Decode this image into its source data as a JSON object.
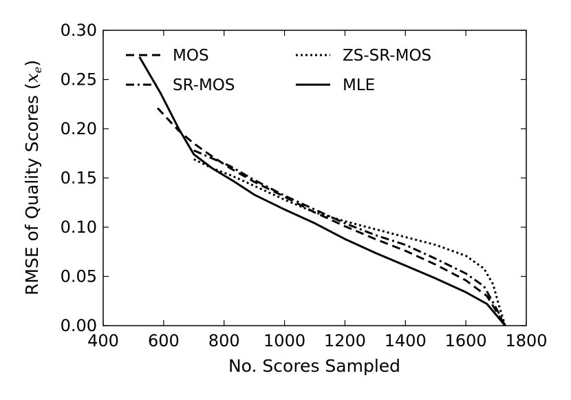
{
  "chart_data": {
    "type": "line",
    "title": "",
    "xlabel": "No. Scores Sampled",
    "ylabel_text": "RMSE of Quality Scores",
    "ylabel_math": "x",
    "ylabel_math_sub": "e",
    "xlim": [
      400,
      1800
    ],
    "ylim": [
      0.0,
      0.3
    ],
    "xticks": [
      "400",
      "600",
      "800",
      "1000",
      "1200",
      "1400",
      "1600",
      "1800"
    ],
    "yticks": [
      "0.00",
      "0.05",
      "0.10",
      "0.15",
      "0.20",
      "0.25",
      "0.30"
    ],
    "grid": false,
    "legend_position": "top-left",
    "series": [
      {
        "name": "MOS",
        "style": "dashed",
        "x": [
          580,
          650,
          700,
          760,
          820,
          900,
          1000,
          1100,
          1200,
          1300,
          1400,
          1500,
          1600,
          1670,
          1700,
          1730
        ],
        "y": [
          0.221,
          0.198,
          0.185,
          0.172,
          0.16,
          0.146,
          0.131,
          0.115,
          0.101,
          0.088,
          0.076,
          0.062,
          0.046,
          0.03,
          0.015,
          0.0
        ]
      },
      {
        "name": "SR-MOS",
        "style": "dashdot",
        "x": [
          700,
          760,
          820,
          900,
          1000,
          1100,
          1200,
          1300,
          1400,
          1500,
          1600,
          1660,
          1700,
          1730
        ],
        "y": [
          0.178,
          0.17,
          0.162,
          0.148,
          0.132,
          0.118,
          0.104,
          0.092,
          0.082,
          0.068,
          0.053,
          0.04,
          0.018,
          0.0
        ]
      },
      {
        "name": "ZS-SR-MOS",
        "style": "dotted",
        "x": [
          700,
          760,
          820,
          900,
          1000,
          1100,
          1200,
          1300,
          1400,
          1500,
          1600,
          1660,
          1690,
          1710,
          1730
        ],
        "y": [
          0.169,
          0.16,
          0.153,
          0.142,
          0.128,
          0.115,
          0.106,
          0.098,
          0.09,
          0.082,
          0.071,
          0.058,
          0.042,
          0.02,
          0.0
        ]
      },
      {
        "name": "MLE",
        "style": "solid",
        "x": [
          520,
          590,
          650,
          700,
          760,
          830,
          900,
          1000,
          1100,
          1200,
          1300,
          1400,
          1500,
          1600,
          1670,
          1730
        ],
        "y": [
          0.273,
          0.236,
          0.2,
          0.174,
          0.16,
          0.147,
          0.133,
          0.118,
          0.104,
          0.088,
          0.074,
          0.061,
          0.048,
          0.034,
          0.022,
          0.0
        ]
      }
    ]
  }
}
